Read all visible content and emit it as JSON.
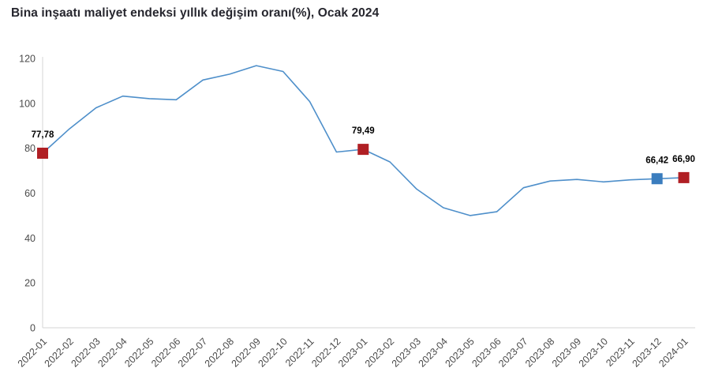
{
  "title": "Bina inşaatı maliyet endeksi yıllık değişim oranı(%), Ocak 2024",
  "chart_data": {
    "type": "line",
    "title": "Bina inşaatı maliyet endeksi yıllık değişim oranı(%), Ocak 2024",
    "categories": [
      "2022-01",
      "2022-02",
      "2022-03",
      "2022-04",
      "2022-05",
      "2022-06",
      "2022-07",
      "2022-08",
      "2022-09",
      "2022-10",
      "2022-11",
      "2022-12",
      "2023-01",
      "2023-02",
      "2023-03",
      "2023-04",
      "2023-05",
      "2023-06",
      "2023-07",
      "2023-08",
      "2023-09",
      "2023-10",
      "2023-11",
      "2023-12",
      "2024-01"
    ],
    "series": [
      {
        "name": "Yıllık değişim oranı (%)",
        "values": [
          77.78,
          88.6,
          98.0,
          103.2,
          102.1,
          101.6,
          110.4,
          113.0,
          116.8,
          114.2,
          100.8,
          78.3,
          79.49,
          73.9,
          61.8,
          53.5,
          50.0,
          51.7,
          62.4,
          65.4,
          66.1,
          65.0,
          65.9,
          66.42,
          66.9
        ]
      }
    ],
    "xlabel": "",
    "ylabel": "",
    "ylim": [
      0,
      120
    ],
    "yticks": [
      0,
      20,
      40,
      60,
      80,
      100,
      120
    ],
    "grid": false,
    "legend": "none",
    "annotations": [
      {
        "category": "2022-01",
        "label": "77,78",
        "marker": "square",
        "color_key": "marker_red"
      },
      {
        "category": "2023-01",
        "label": "79,49",
        "marker": "square",
        "color_key": "marker_red"
      },
      {
        "category": "2023-12",
        "label": "66,42",
        "marker": "square",
        "color_key": "marker_blue"
      },
      {
        "category": "2024-01",
        "label": "66,90",
        "marker": "square",
        "color_key": "marker_red"
      }
    ]
  },
  "colors": {
    "line": "#4E8FCA",
    "marker_red": "#B01F24",
    "marker_blue": "#3A7DBE",
    "axis_line": "#D6D6D6",
    "tick_text": "#4A4A4A",
    "data_label": "#000000",
    "title_text": "#26262E",
    "background": "#FFFFFF"
  }
}
